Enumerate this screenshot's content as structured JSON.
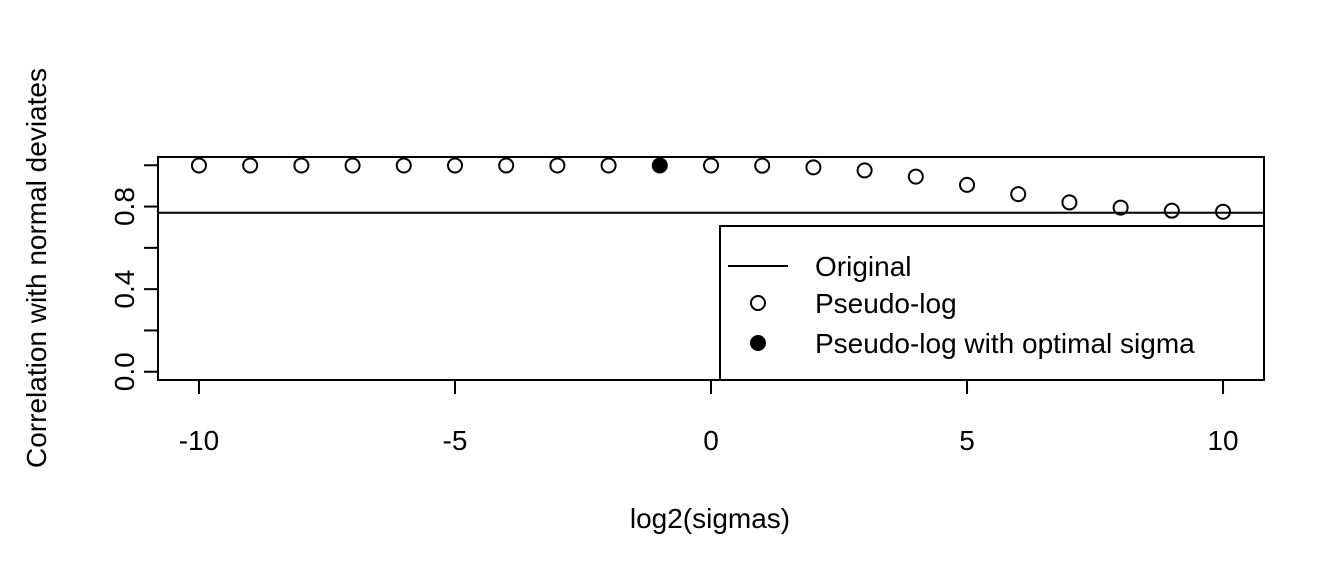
{
  "chart_data": {
    "type": "scatter",
    "title": "",
    "xlabel": "log2(sigmas)",
    "ylabel": "Correlation with normal deviates",
    "xlim": [
      -10.8,
      10.8
    ],
    "ylim": [
      -0.04,
      1.04
    ],
    "xticks": [
      -10,
      -5,
      0,
      5,
      10
    ],
    "xtick_labels": [
      "-10",
      "-5",
      "0",
      "5",
      "10"
    ],
    "yticks": [
      0.0,
      0.2,
      0.4,
      0.6,
      0.8,
      1.0
    ],
    "ytick_labels": [
      "0.0",
      "",
      "0.4",
      "",
      "0.8",
      ""
    ],
    "grid": false,
    "reference_line": {
      "name": "Original",
      "y": 0.77
    },
    "series": [
      {
        "name": "Pseudo-log",
        "marker": "open-circle",
        "x": [
          -10,
          -9,
          -8,
          -7,
          -6,
          -5,
          -4,
          -3,
          -2,
          0,
          1,
          2,
          3,
          4,
          5,
          6,
          7,
          8,
          9,
          10
        ],
        "y": [
          0.999,
          0.999,
          0.999,
          0.999,
          0.999,
          0.999,
          0.999,
          0.999,
          0.999,
          0.999,
          0.998,
          0.99,
          0.975,
          0.945,
          0.905,
          0.86,
          0.82,
          0.795,
          0.78,
          0.775
        ]
      },
      {
        "name": "Pseudo-log with optimal sigma",
        "marker": "filled-circle",
        "x": [
          -1
        ],
        "y": [
          0.999
        ]
      }
    ],
    "legend": {
      "position": "bottom-right",
      "entries": [
        {
          "label": "Original",
          "symbol": "line"
        },
        {
          "label": "Pseudo-log",
          "symbol": "open-circle"
        },
        {
          "label": "Pseudo-log with optimal sigma",
          "symbol": "filled-circle"
        }
      ]
    }
  }
}
